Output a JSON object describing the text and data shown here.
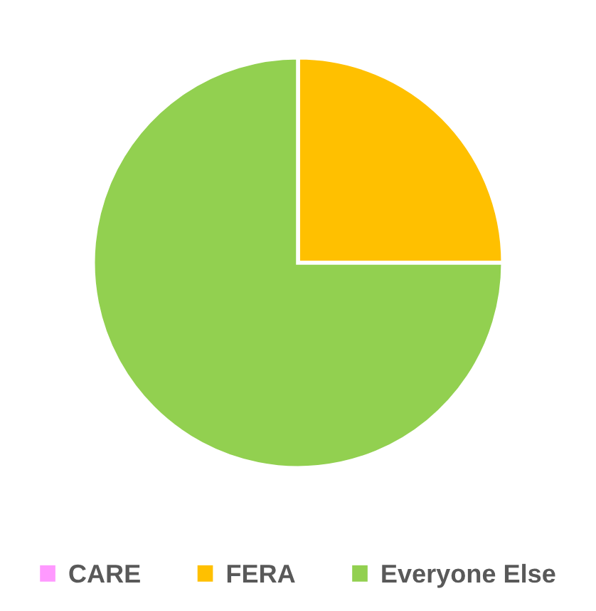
{
  "chart_data": {
    "type": "pie",
    "categories": [
      "CARE",
      "FERA",
      "Everyone Else"
    ],
    "values": [
      0,
      25,
      75
    ],
    "colors": [
      "#ff99ff",
      "#ffc000",
      "#92d050"
    ],
    "legend": "bottom"
  }
}
